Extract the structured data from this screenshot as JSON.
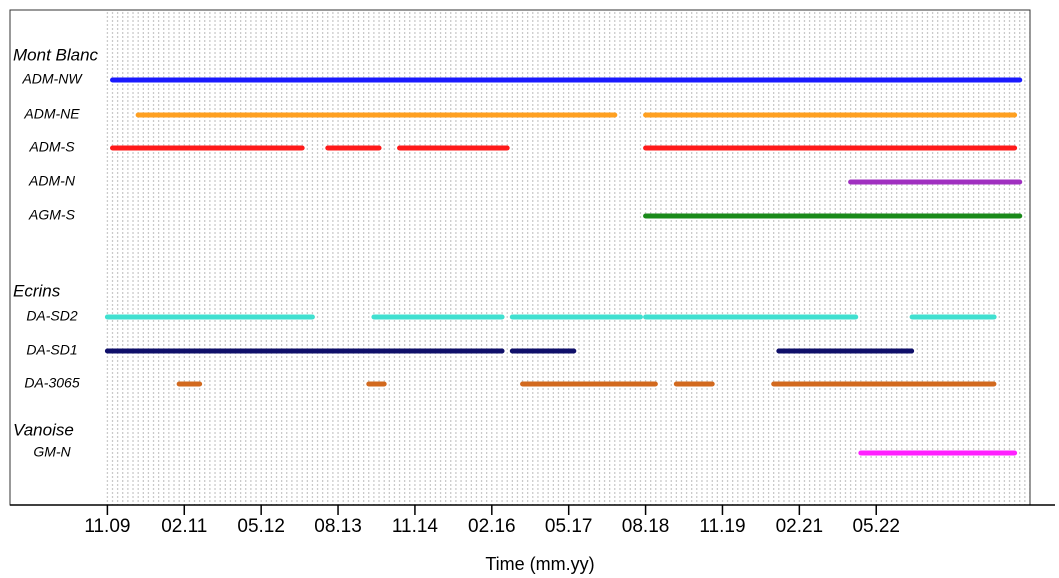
{
  "chart_data": {
    "type": "timeline",
    "xlabel": "Time (mm.yy)",
    "xlim": [
      "2008-04",
      "2024-11"
    ],
    "xticks": [
      {
        "value": "2009-11",
        "label": "11.09"
      },
      {
        "value": "2011-02",
        "label": "02.11"
      },
      {
        "value": "2012-05",
        "label": "05.12"
      },
      {
        "value": "2013-08",
        "label": "08.13"
      },
      {
        "value": "2014-11",
        "label": "11.14"
      },
      {
        "value": "2016-02",
        "label": "02.16"
      },
      {
        "value": "2017-05",
        "label": "05.17"
      },
      {
        "value": "2018-08",
        "label": "08.18"
      },
      {
        "value": "2019-11",
        "label": "11.19"
      },
      {
        "value": "2021-02",
        "label": "02.21"
      },
      {
        "value": "2022-05",
        "label": "05.22"
      }
    ],
    "grid": true,
    "groups": [
      {
        "name": "Mont Blanc",
        "series": [
          {
            "name": "ADM-NW",
            "color": "#1a1aff",
            "segments": [
              [
                "2009-12",
                "2024-09"
              ]
            ]
          },
          {
            "name": "ADM-NE",
            "color": "#ffa020",
            "segments": [
              [
                "2010-05",
                "2018-02"
              ],
              [
                "2018-08",
                "2024-08"
              ]
            ]
          },
          {
            "name": "ADM-S",
            "color": "#ff1a1a",
            "segments": [
              [
                "2009-12",
                "2013-01"
              ],
              [
                "2013-06",
                "2014-04"
              ],
              [
                "2014-08",
                "2016-05"
              ],
              [
                "2018-08",
                "2024-08"
              ]
            ]
          },
          {
            "name": "ADM-N",
            "color": "#a030c0",
            "segments": [
              [
                "2021-12",
                "2024-09"
              ]
            ]
          },
          {
            "name": "AGM-S",
            "color": "#1a8a1a",
            "segments": [
              [
                "2018-08",
                "2024-09"
              ]
            ]
          }
        ]
      },
      {
        "name": "Ecrins",
        "series": [
          {
            "name": "DA-SD2",
            "color": "#40e0d0",
            "segments": [
              [
                "2009-11",
                "2013-03"
              ],
              [
                "2014-03",
                "2016-04"
              ],
              [
                "2016-06",
                "2018-07"
              ],
              [
                "2018-08",
                "2022-01"
              ],
              [
                "2022-12",
                "2024-04"
              ]
            ]
          },
          {
            "name": "DA-SD1",
            "color": "#10106a",
            "segments": [
              [
                "2009-11",
                "2016-04"
              ],
              [
                "2016-06",
                "2017-06"
              ],
              [
                "2020-10",
                "2022-12"
              ]
            ]
          },
          {
            "name": "DA-3065",
            "color": "#d2691e",
            "segments": [
              [
                "2011-01",
                "2011-05"
              ],
              [
                "2014-02",
                "2014-05"
              ],
              [
                "2016-08",
                "2018-10"
              ],
              [
                "2019-02",
                "2019-09"
              ],
              [
                "2020-09",
                "2024-04"
              ]
            ]
          }
        ]
      },
      {
        "name": "Vanoise",
        "series": [
          {
            "name": "GM-N",
            "color": "#ff20ff",
            "segments": [
              [
                "2022-02",
                "2024-08"
              ]
            ]
          }
        ]
      }
    ]
  }
}
